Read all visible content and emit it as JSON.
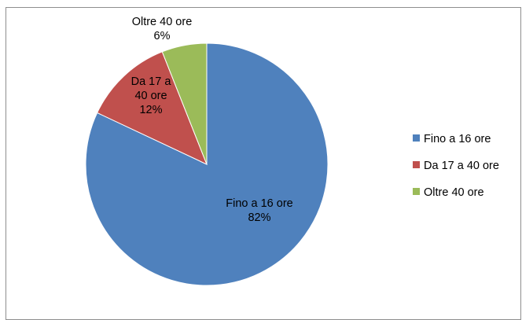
{
  "chart_data": {
    "type": "pie",
    "categories": [
      "Fino a 16 ore",
      "Da 17 a 40 ore",
      "Oltre 40 ore"
    ],
    "values": [
      82,
      12,
      6
    ],
    "unit": "%",
    "colors": [
      "#4f81bd",
      "#c0504d",
      "#9bbb59"
    ],
    "data_labels": [
      {
        "lines": [
          "Fino a 16 ore",
          "82%"
        ]
      },
      {
        "lines": [
          "Da 17 a",
          "40 ore",
          "12%"
        ]
      },
      {
        "lines": [
          "Oltre 40 ore",
          "6%"
        ]
      }
    ],
    "legend": {
      "placement": "right",
      "entries": [
        "Fino a 16 ore",
        "Da 17 a 40 ore",
        "Oltre 40 ore"
      ]
    }
  }
}
